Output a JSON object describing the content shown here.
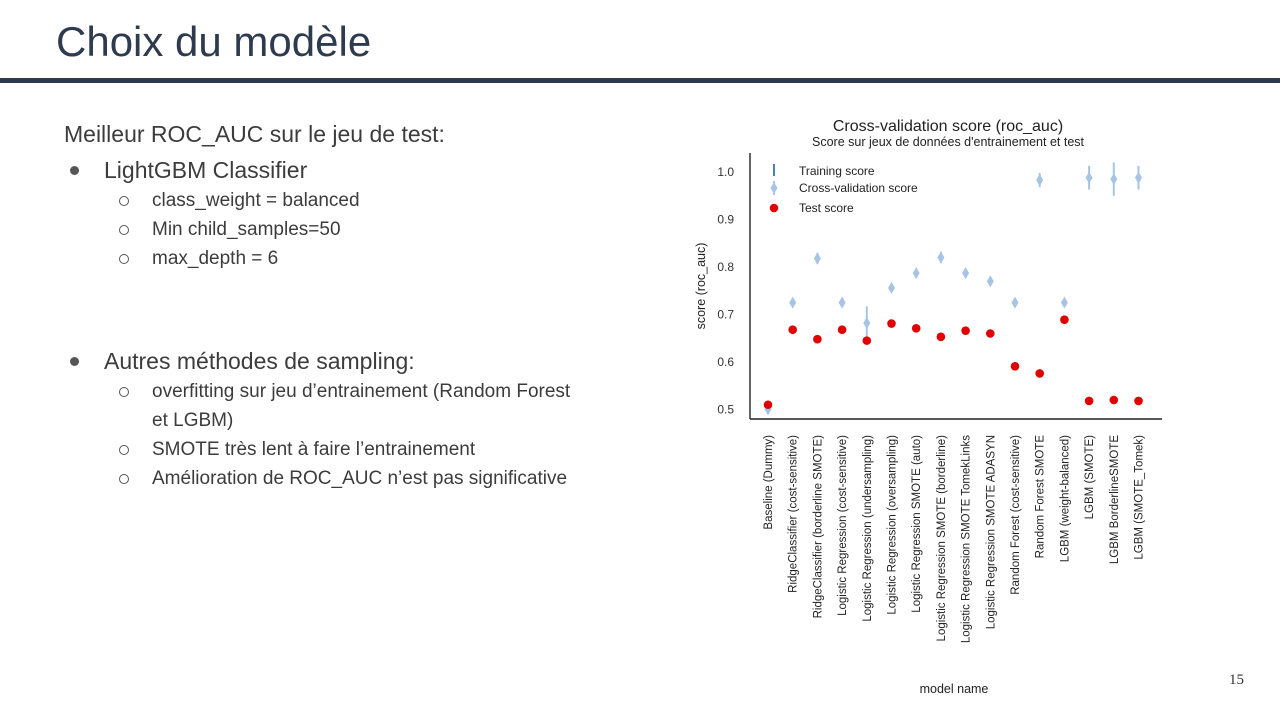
{
  "slide": {
    "title": "Choix du modèle",
    "page_number": "15"
  },
  "content": {
    "heading": "Meilleur ROC_AUC sur le jeu de test:",
    "bullets": [
      {
        "text": "LightGBM Classifier",
        "sub": [
          "class_weight = balanced",
          "Min child_samples=50",
          "max_depth = 6"
        ]
      },
      {
        "text": "Autres méthodes de sampling:",
        "sub": [
          "overfitting sur jeu d’entrainement (Random Forest et LGBM)",
          "SMOTE très lent à faire l’entrainement",
          "Amélioration de ROC_AUC n’est pas significative"
        ]
      }
    ]
  },
  "chart_data": {
    "type": "scatter",
    "title": "Cross-validation score (roc_auc)",
    "subtitle": "Score sur jeux de données d'entrainement et test",
    "xlabel": "model name",
    "ylabel": "score (roc_auc)",
    "ylim": [
      0.48,
      1.04
    ],
    "yticks": [
      0.5,
      0.6,
      0.7,
      0.8,
      0.9,
      1.0
    ],
    "grid": false,
    "legend_position": "top-left",
    "colors": {
      "training": "#4a7fc1",
      "cv": "#a8c4e5",
      "test": "#e00000",
      "axis": "#222222"
    },
    "categories": [
      "Baseline (Dummy)",
      "RidgeClassifier (cost-sensitive)",
      "RidgeClassifier (borderline SMOTE)",
      "Logistic Regression (cost-sensitive)",
      "Logistic Regression (undersampling)",
      "Logistic Regression (oversampling)",
      "Logistic Regression SMOTE (auto)",
      "Logistic Regression SMOTE (borderline)",
      "Logistic Regression SMOTE TomekLinks",
      "Logistic Regression SMOTE ADASYN",
      "Random Forest (cost-sensitive)",
      "Random Forest SMOTE",
      "LGBM (weight-balanced)",
      "LGBM (SMOTE)",
      "LGBM BorderlineSMOTE",
      "LGBM (SMOTE_Tomek)"
    ],
    "series": [
      {
        "name": "Cross-validation score",
        "values": [
          0.5,
          0.725,
          0.818,
          0.725,
          0.682,
          0.756,
          0.787,
          0.82,
          0.787,
          0.77,
          0.725,
          0.983,
          0.725,
          0.988,
          0.985,
          0.988
        ],
        "errors": [
          0.005,
          0.005,
          0.012,
          0.005,
          0.035,
          0.005,
          0.008,
          0.012,
          0.008,
          0.005,
          0.004,
          0.015,
          0.005,
          0.025,
          0.035,
          0.025
        ]
      },
      {
        "name": "Test score",
        "values": [
          0.51,
          0.668,
          0.648,
          0.668,
          0.645,
          0.681,
          0.671,
          0.653,
          0.666,
          0.66,
          0.591,
          0.576,
          0.689,
          0.518,
          0.52,
          0.518
        ]
      }
    ],
    "legend": [
      "Training score",
      "Cross-validation score",
      "Test score"
    ]
  }
}
